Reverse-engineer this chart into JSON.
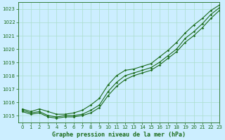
{
  "title": "Graphe pression niveau de la mer (hPa)",
  "bg_color": "#cceeff",
  "grid_color": "#aaddcc",
  "line_color": "#1a6b1a",
  "xlim": [
    -0.5,
    23
  ],
  "ylim": [
    1014.5,
    1023.5
  ],
  "yticks": [
    1015,
    1016,
    1017,
    1018,
    1019,
    1020,
    1021,
    1022,
    1023
  ],
  "xticks": [
    0,
    1,
    2,
    3,
    4,
    5,
    6,
    7,
    8,
    9,
    10,
    11,
    12,
    13,
    14,
    15,
    16,
    17,
    18,
    19,
    20,
    21,
    22,
    23
  ],
  "x": [
    0,
    1,
    2,
    3,
    4,
    5,
    6,
    7,
    8,
    9,
    10,
    11,
    12,
    13,
    14,
    15,
    16,
    17,
    18,
    19,
    20,
    21,
    22,
    23
  ],
  "y_main": [
    1015.4,
    1015.2,
    1015.3,
    1015.0,
    1014.9,
    1015.0,
    1015.0,
    1015.1,
    1015.4,
    1015.8,
    1016.8,
    1017.5,
    1018.0,
    1018.2,
    1018.4,
    1018.6,
    1019.0,
    1019.5,
    1020.0,
    1020.8,
    1021.3,
    1021.9,
    1022.6,
    1023.1
  ],
  "y_upper": [
    1015.5,
    1015.3,
    1015.5,
    1015.3,
    1015.1,
    1015.1,
    1015.2,
    1015.4,
    1015.8,
    1016.3,
    1017.3,
    1018.0,
    1018.4,
    1018.5,
    1018.7,
    1018.9,
    1019.4,
    1019.9,
    1020.5,
    1021.2,
    1021.8,
    1022.3,
    1022.9,
    1023.3
  ],
  "y_lower": [
    1015.3,
    1015.1,
    1015.2,
    1014.9,
    1014.8,
    1014.9,
    1014.9,
    1015.0,
    1015.2,
    1015.6,
    1016.5,
    1017.2,
    1017.7,
    1018.0,
    1018.2,
    1018.4,
    1018.8,
    1019.3,
    1019.8,
    1020.5,
    1021.0,
    1021.6,
    1022.3,
    1022.9
  ]
}
